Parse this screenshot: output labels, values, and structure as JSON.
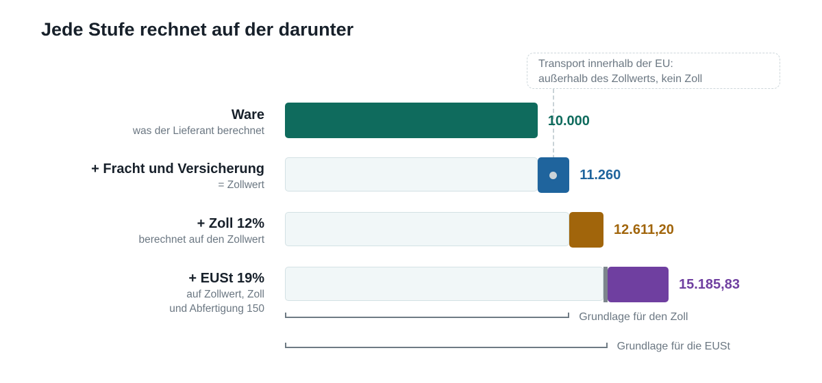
{
  "title": "Jede Stufe rechnet auf der darunter",
  "callout": {
    "line1": "Transport innerhalb der EU:",
    "line2": "außerhalb des Zollwerts, kein Zoll"
  },
  "rows": [
    {
      "label": "Ware",
      "sub": "was der Lieferant berechnet",
      "value_label": "10.000"
    },
    {
      "label": "+ Fracht und Versicherung",
      "sub": "= Zollwert",
      "value_label": "11.260"
    },
    {
      "label": "+ Zoll 12%",
      "sub": "berechnet auf den Zollwert",
      "value_label": "12.611,20"
    },
    {
      "label": "+ EUSt 19%",
      "sub1": "auf Zollwert, Zoll",
      "sub2": "und Abfertigung 150",
      "value_label": "15.185,83"
    }
  ],
  "brackets": {
    "customs_base": "Grundlage für den Zoll",
    "vat_base": "Grundlage für die EUSt"
  },
  "colors": {
    "ware": "#0f6b5d",
    "freight": "#1f649d",
    "duty": "#a1650b",
    "clearance": "#7c858c",
    "vat": "#6f3fa0"
  },
  "chart_data": {
    "type": "bar",
    "subtype": "cumulative-waterfall",
    "title": "Jede Stufe rechnet auf der darunter",
    "categories": [
      "Ware",
      "+ Fracht und Versicherung",
      "+ Zoll 12%",
      "+ EUSt 19%"
    ],
    "segments": [
      {
        "category": "Ware",
        "start": 0,
        "end": 10000,
        "color": "#0f6b5d"
      },
      {
        "category": "+ Fracht und Versicherung",
        "start": 10000,
        "end": 11260,
        "color": "#1f649d"
      },
      {
        "category": "+ Zoll 12%",
        "start": 11260,
        "end": 12611.2,
        "color": "#a1650b"
      },
      {
        "category": "+ EUSt 19%",
        "start": 12611.2,
        "end": 12761.2,
        "color": "#7c858c"
      },
      {
        "category": "+ EUSt 19%",
        "start": 12761.2,
        "end": 15185.83,
        "color": "#6f3fa0"
      }
    ],
    "totals": [
      10000,
      11260,
      12611.2,
      15185.83
    ],
    "value_labels": [
      "10.000",
      "11.260",
      "12.611,20",
      "15.185,83"
    ],
    "brackets": [
      {
        "label": "Grundlage für den Zoll",
        "start": 0,
        "end": 11260
      },
      {
        "label": "Grundlage für die EUSt",
        "start": 0,
        "end": 12761.2
      }
    ],
    "grid": false,
    "legend": "none"
  }
}
